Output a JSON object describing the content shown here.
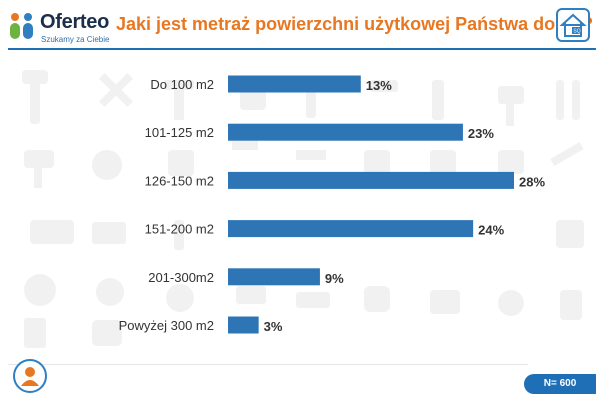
{
  "brand": {
    "name": "Oferteo",
    "tagline": "Szukamy za Ciebie"
  },
  "title": "Jaki jest metraż powierzchni użytkowej Państwa domu?",
  "house_badge": "SQ",
  "sample_size": "N= 600",
  "colors": {
    "bar": "#2e75b6",
    "title": "#e87722",
    "accent": "#1f6fb6"
  },
  "icons": [
    "oferteo-logo-icon",
    "house-icon",
    "person-icon",
    "tools-background"
  ],
  "chart_data": {
    "type": "bar",
    "orientation": "horizontal",
    "categories": [
      "Do 100 m2",
      "101-125 m2",
      "126-150 m2",
      "151-200 m2",
      "201-300m2",
      "Powyżej 300 m2"
    ],
    "values": [
      13,
      23,
      28,
      24,
      9,
      3
    ],
    "value_labels": [
      "13%",
      "23%",
      "28%",
      "24%",
      "9%",
      "3%"
    ],
    "unit": "%",
    "xlim": [
      0,
      28
    ],
    "grid": false,
    "legend": "none"
  }
}
